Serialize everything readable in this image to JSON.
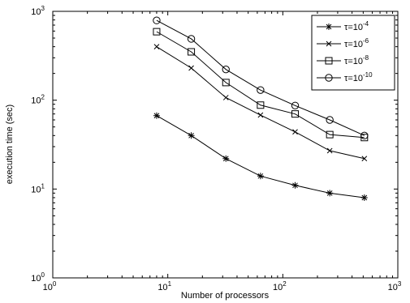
{
  "chart_data": {
    "type": "line",
    "xscale": "log",
    "yscale": "log",
    "xlim": [
      1,
      1000
    ],
    "ylim": [
      1,
      1000
    ],
    "xlabel": "Number of processors",
    "ylabel": "execution time (sec)",
    "x_ticks": [
      {
        "value": 1,
        "base": "10",
        "exp": "0"
      },
      {
        "value": 10,
        "base": "10",
        "exp": "1"
      },
      {
        "value": 100,
        "base": "10",
        "exp": "2"
      },
      {
        "value": 1000,
        "base": "10",
        "exp": "3"
      }
    ],
    "y_ticks": [
      {
        "value": 1,
        "base": "10",
        "exp": "0"
      },
      {
        "value": 10,
        "base": "10",
        "exp": "1"
      },
      {
        "value": 100,
        "base": "10",
        "exp": "2"
      },
      {
        "value": 1000,
        "base": "10",
        "exp": "3"
      }
    ],
    "grid": false,
    "legend_position": "top-right",
    "x": [
      8,
      16,
      32,
      64,
      128,
      256,
      512
    ],
    "series": [
      {
        "name": "τ=10-4",
        "label_base": "τ=10",
        "label_exp": "-4",
        "marker": "asterisk",
        "values": [
          67,
          40,
          22,
          14,
          11,
          9,
          8
        ]
      },
      {
        "name": "τ=10-6",
        "label_base": "τ=10",
        "label_exp": "-6",
        "marker": "x",
        "values": [
          400,
          230,
          107,
          68,
          44,
          27,
          22
        ]
      },
      {
        "name": "τ=10-8",
        "label_base": "τ=10",
        "label_exp": "-8",
        "marker": "square",
        "values": [
          590,
          350,
          158,
          88,
          70,
          41,
          38
        ]
      },
      {
        "name": "τ=10-10",
        "label_base": "τ=10",
        "label_exp": "-10",
        "marker": "circle",
        "values": [
          790,
          490,
          222,
          130,
          87,
          60,
          40
        ]
      }
    ]
  }
}
